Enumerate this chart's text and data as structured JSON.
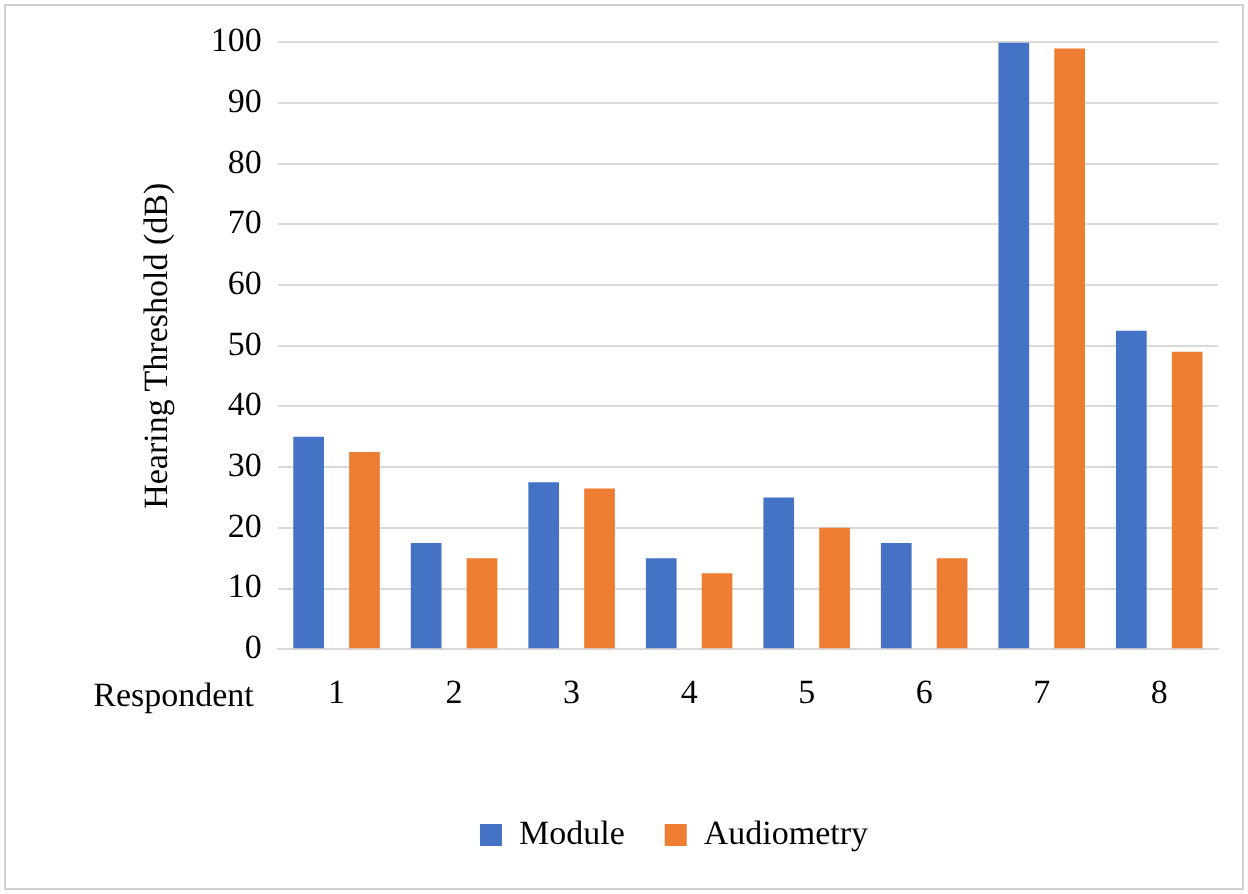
{
  "chart_data": {
    "type": "bar",
    "xlabel": "Respondent",
    "ylabel": "Hearing Threshold (dB)",
    "categories": [
      "1",
      "2",
      "3",
      "4",
      "5",
      "6",
      "7",
      "8"
    ],
    "series": [
      {
        "name": "Module",
        "color": "#4472c4",
        "values": [
          35,
          17.5,
          27.5,
          15,
          25,
          17.5,
          100,
          52.5
        ]
      },
      {
        "name": "Audiometry",
        "color": "#ed7d31",
        "values": [
          32.5,
          15,
          26.5,
          12.5,
          20,
          15,
          99,
          49
        ]
      }
    ],
    "ylim": [
      0,
      100
    ],
    "yticks": [
      0,
      10,
      20,
      30,
      40,
      50,
      60,
      70,
      80,
      90,
      100
    ],
    "grid": "y",
    "legend": "bottom"
  }
}
